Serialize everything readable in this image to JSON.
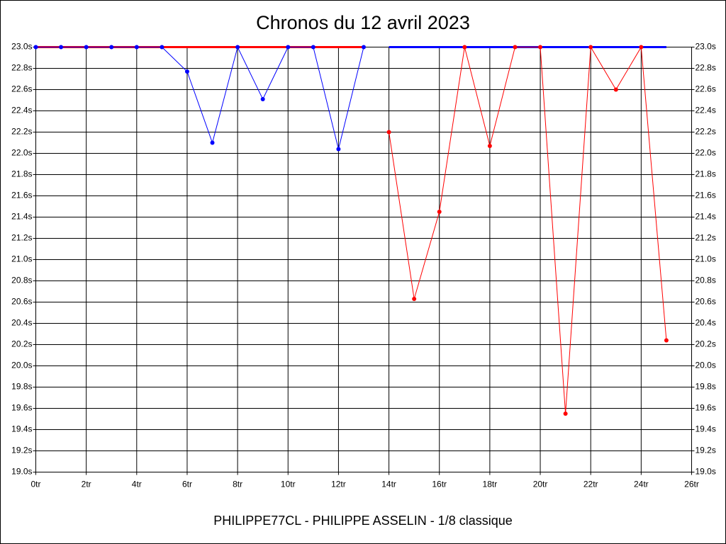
{
  "chart_data": {
    "type": "line",
    "title": "Chronos du 12 avril 2023",
    "subtitle": "PHILIPPE77CL - PHILIPPE ASSELIN - 1/8 classique",
    "xlim": [
      0,
      26
    ],
    "xticks": [
      {
        "value": 0,
        "label": "0tr"
      },
      {
        "value": 2,
        "label": "2tr"
      },
      {
        "value": 4,
        "label": "4tr"
      },
      {
        "value": 6,
        "label": "6tr"
      },
      {
        "value": 8,
        "label": "8tr"
      },
      {
        "value": 10,
        "label": "10tr"
      },
      {
        "value": 12,
        "label": "12tr"
      },
      {
        "value": 14,
        "label": "14tr"
      },
      {
        "value": 16,
        "label": "16tr"
      },
      {
        "value": 18,
        "label": "18tr"
      },
      {
        "value": 20,
        "label": "20tr"
      },
      {
        "value": 22,
        "label": "22tr"
      },
      {
        "value": 24,
        "label": "24tr"
      },
      {
        "value": 26,
        "label": "26tr"
      }
    ],
    "ylim": [
      19.0,
      23.0
    ],
    "yticks": [
      {
        "value": 19.0,
        "label": "19.0s"
      },
      {
        "value": 19.2,
        "label": "19.2s"
      },
      {
        "value": 19.4,
        "label": "19.4s"
      },
      {
        "value": 19.6,
        "label": "19.6s"
      },
      {
        "value": 19.8,
        "label": "19.8s"
      },
      {
        "value": 20.0,
        "label": "20.0s"
      },
      {
        "value": 20.2,
        "label": "20.2s"
      },
      {
        "value": 20.4,
        "label": "20.4s"
      },
      {
        "value": 20.6,
        "label": "20.6s"
      },
      {
        "value": 20.8,
        "label": "20.8s"
      },
      {
        "value": 21.0,
        "label": "21.0s"
      },
      {
        "value": 21.2,
        "label": "21.2s"
      },
      {
        "value": 21.4,
        "label": "21.4s"
      },
      {
        "value": 21.6,
        "label": "21.6s"
      },
      {
        "value": 21.8,
        "label": "21.8s"
      },
      {
        "value": 22.0,
        "label": "22.0s"
      },
      {
        "value": 22.2,
        "label": "22.2s"
      },
      {
        "value": 22.4,
        "label": "22.4s"
      },
      {
        "value": 22.6,
        "label": "22.6s"
      },
      {
        "value": 22.8,
        "label": "22.8s"
      },
      {
        "value": 23.0,
        "label": "23.0s"
      }
    ],
    "grid": true,
    "series": [
      {
        "color": "#ff0000",
        "markers": false,
        "x": [
          0,
          13
        ],
        "values": [
          23.0,
          23.0
        ]
      },
      {
        "color": "#0000ff",
        "markers": false,
        "x": [
          14,
          25
        ],
        "values": [
          23.0,
          23.0
        ]
      },
      {
        "color": "#0000ff",
        "markers": true,
        "x": [
          0,
          1,
          2,
          3,
          4,
          5,
          6,
          7,
          8,
          9,
          10,
          11,
          12,
          13
        ],
        "values": [
          23.0,
          23.0,
          23.0,
          23.0,
          23.0,
          23.0,
          22.77,
          22.1,
          23.0,
          22.51,
          23.0,
          23.0,
          22.04,
          23.0
        ]
      },
      {
        "color": "#ff0000",
        "markers": true,
        "x": [
          14,
          15,
          16,
          17,
          18,
          19,
          20,
          21,
          22,
          23,
          24,
          25
        ],
        "values": [
          22.2,
          20.63,
          21.45,
          23.0,
          22.07,
          23.0,
          23.0,
          19.55,
          23.0,
          22.6,
          23.0,
          20.24
        ]
      }
    ]
  }
}
